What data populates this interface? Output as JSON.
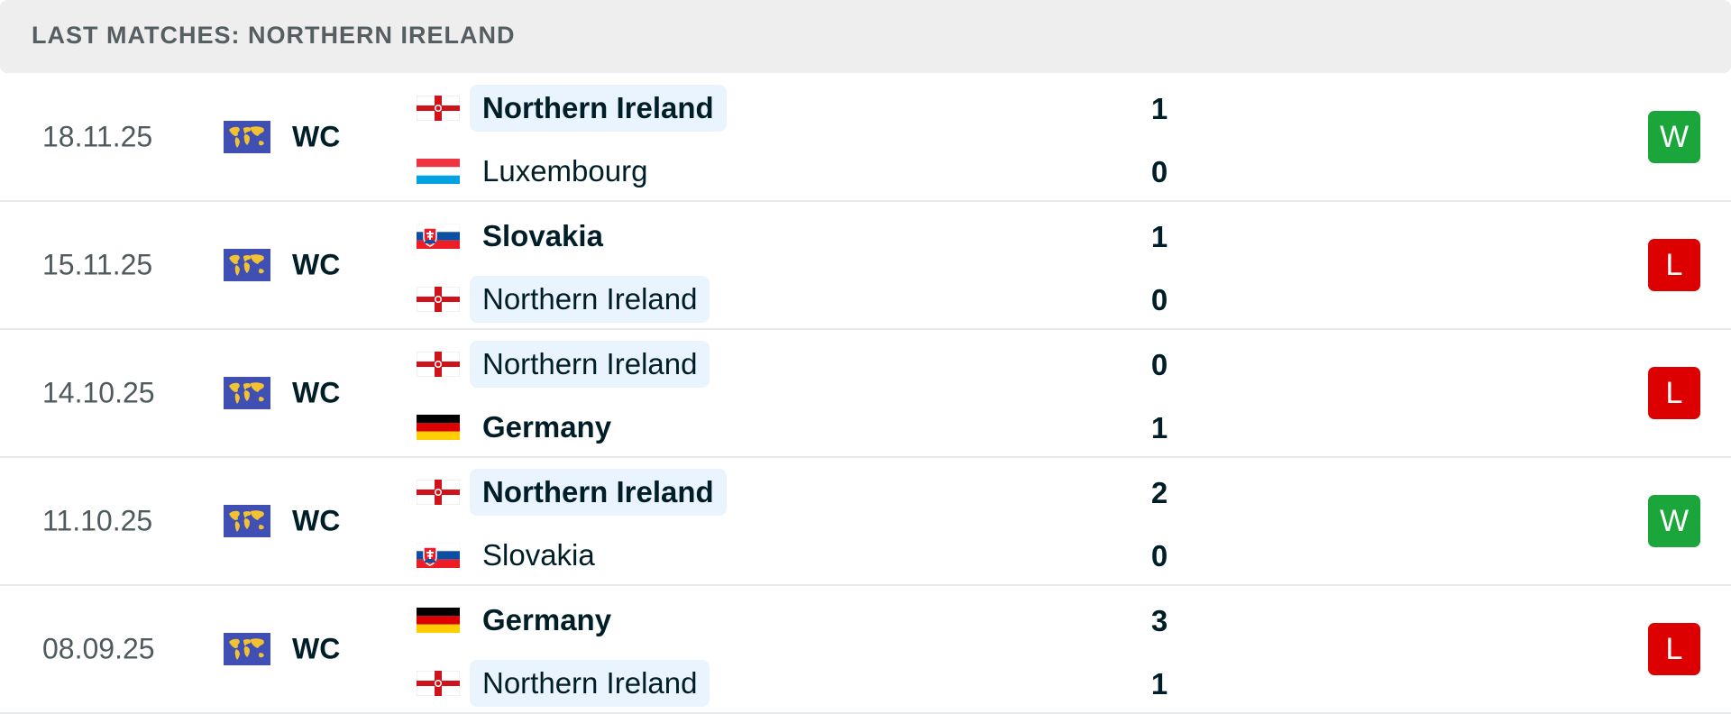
{
  "header": {
    "title": "LAST MATCHES: NORTHERN IRELAND"
  },
  "colors": {
    "win": "#1ba63b",
    "loss": "#dc0000",
    "highlight": "#eaf4fe",
    "header_bg": "#eeeeee"
  },
  "matches": [
    {
      "date": "18.11.25",
      "competition": "WC",
      "competition_icon": "world-map-flag-icon",
      "home": {
        "name": "Northern Ireland",
        "flag": "northern-ireland-flag-icon",
        "score": "1",
        "bold": true,
        "highlight": true
      },
      "away": {
        "name": "Luxembourg",
        "flag": "luxembourg-flag-icon",
        "score": "0",
        "bold": false,
        "highlight": false
      },
      "result": "W"
    },
    {
      "date": "15.11.25",
      "competition": "WC",
      "competition_icon": "world-map-flag-icon",
      "home": {
        "name": "Slovakia",
        "flag": "slovakia-flag-icon",
        "score": "1",
        "bold": true,
        "highlight": false
      },
      "away": {
        "name": "Northern Ireland",
        "flag": "northern-ireland-flag-icon",
        "score": "0",
        "bold": false,
        "highlight": true
      },
      "result": "L"
    },
    {
      "date": "14.10.25",
      "competition": "WC",
      "competition_icon": "world-map-flag-icon",
      "home": {
        "name": "Northern Ireland",
        "flag": "northern-ireland-flag-icon",
        "score": "0",
        "bold": false,
        "highlight": true
      },
      "away": {
        "name": "Germany",
        "flag": "germany-flag-icon",
        "score": "1",
        "bold": true,
        "highlight": false
      },
      "result": "L"
    },
    {
      "date": "11.10.25",
      "competition": "WC",
      "competition_icon": "world-map-flag-icon",
      "home": {
        "name": "Northern Ireland",
        "flag": "northern-ireland-flag-icon",
        "score": "2",
        "bold": true,
        "highlight": true
      },
      "away": {
        "name": "Slovakia",
        "flag": "slovakia-flag-icon",
        "score": "0",
        "bold": false,
        "highlight": false
      },
      "result": "W"
    },
    {
      "date": "08.09.25",
      "competition": "WC",
      "competition_icon": "world-map-flag-icon",
      "home": {
        "name": "Germany",
        "flag": "germany-flag-icon",
        "score": "3",
        "bold": true,
        "highlight": false
      },
      "away": {
        "name": "Northern Ireland",
        "flag": "northern-ireland-flag-icon",
        "score": "1",
        "bold": false,
        "highlight": true
      },
      "result": "L"
    }
  ]
}
